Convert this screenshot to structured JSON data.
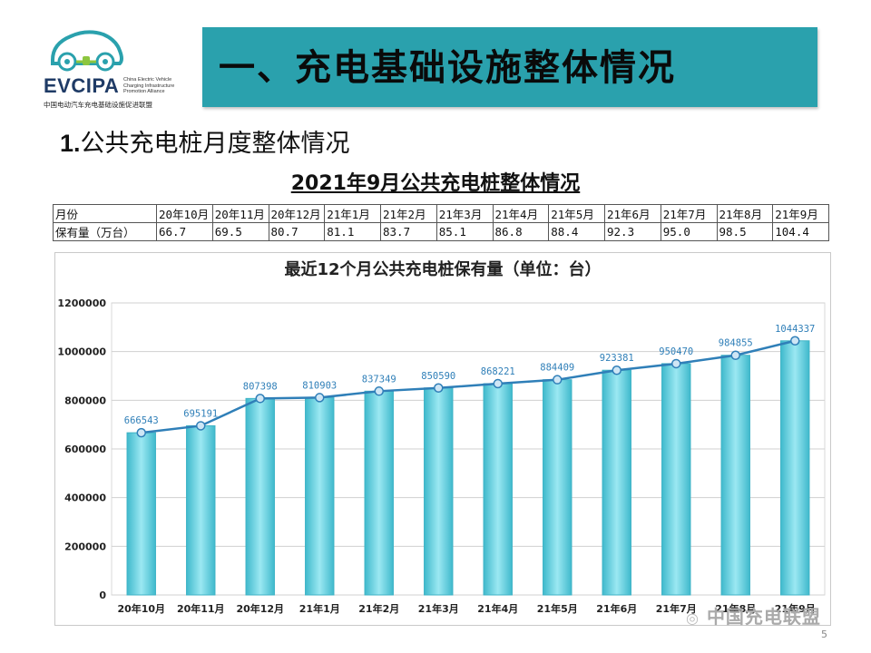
{
  "logo": {
    "name": "EVCIPA",
    "subtitle_lines": [
      "China Electric Vehicle",
      "Charging Infrastructure",
      "Promotion Alliance"
    ],
    "cn_name": "中国电动汽车充电基础设施促进联盟"
  },
  "header": {
    "title": "一、充电基础设施整体情况"
  },
  "section": {
    "num": "1.",
    "title": "公共充电桩月度整体情况"
  },
  "table": {
    "title": "2021年9月公共充电桩整体情况",
    "month_label": "月份",
    "value_label": "保有量（万台）",
    "months": [
      "20年10月",
      "20年11月",
      "20年12月",
      "21年1月",
      "21年2月",
      "21年3月",
      "21年4月",
      "21年5月",
      "21年6月",
      "21年7月",
      "21年8月",
      "21年9月"
    ],
    "values": [
      "66.7",
      "69.5",
      "80.7",
      "81.1",
      "83.7",
      "85.1",
      "86.8",
      "88.4",
      "92.3",
      "95.0",
      "98.5",
      "104.4"
    ]
  },
  "chart_data": {
    "type": "bar",
    "title": "最近12个月公共充电桩保有量（单位：台）",
    "categories": [
      "20年10月",
      "20年11月",
      "20年12月",
      "21年1月",
      "21年2月",
      "21年3月",
      "21年4月",
      "21年5月",
      "21年6月",
      "21年7月",
      "21年8月",
      "21年9月"
    ],
    "values": [
      666543,
      695191,
      807398,
      810903,
      837349,
      850590,
      868221,
      884409,
      923381,
      950470,
      984855,
      1044337
    ],
    "overlay_line": true,
    "ylim": [
      0,
      1200000
    ],
    "yticks": [
      0,
      200000,
      400000,
      600000,
      800000,
      1000000,
      1200000
    ],
    "grid": true,
    "legend": "none",
    "colors": {
      "bar": "#5fd0e0",
      "bar_edge": "#3fb3c6",
      "line": "#2f7fb8",
      "marker": "#2f7fb8",
      "label": "#2f7fb8"
    }
  },
  "footer": {
    "watermark": "中国充电联盟",
    "page": "5"
  },
  "colors": {
    "title_band": "#2aa1ad"
  }
}
